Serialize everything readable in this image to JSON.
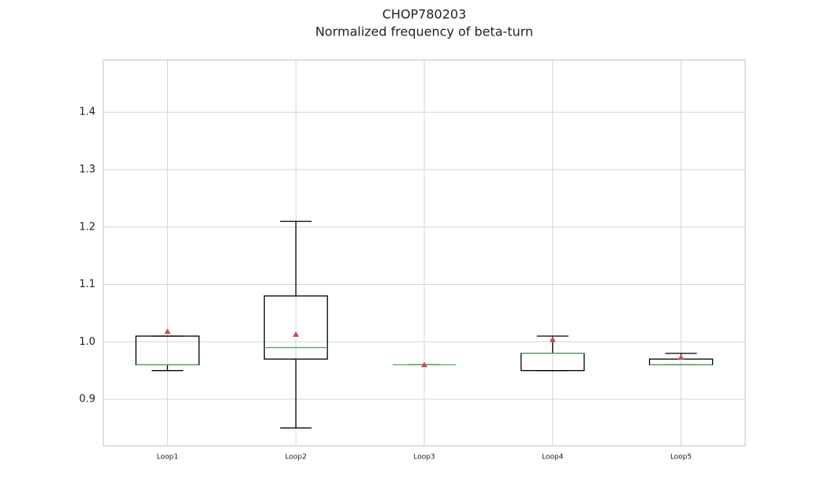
{
  "chart_data": {
    "type": "box",
    "title": "CHOP780203",
    "subtitle": "Normalized frequency of beta-turn",
    "categories": [
      "Loop1",
      "Loop2",
      "Loop3",
      "Loop4",
      "Loop5"
    ],
    "whislo": [
      0.95,
      0.85,
      0.96,
      0.95,
      0.96
    ],
    "q1": [
      0.96,
      0.97,
      0.96,
      0.95,
      0.96
    ],
    "med": [
      0.96,
      0.99,
      0.96,
      0.98,
      0.96
    ],
    "q3": [
      1.01,
      1.08,
      0.96,
      0.98,
      0.97
    ],
    "whishi": [
      1.01,
      1.21,
      0.96,
      1.01,
      0.98
    ],
    "mean": [
      1.018,
      1.013,
      0.96,
      1.004,
      0.973
    ],
    "box_color": "#000000",
    "median_color": "#55a868",
    "mean_color": "#c44e52",
    "ylim": [
      0.819,
      1.491
    ],
    "yticks": [
      0.9,
      {
        "value": 1,
        "label": "1.0"
      },
      1.1,
      1.2,
      1.3,
      1.4
    ],
    "grid": true
  }
}
